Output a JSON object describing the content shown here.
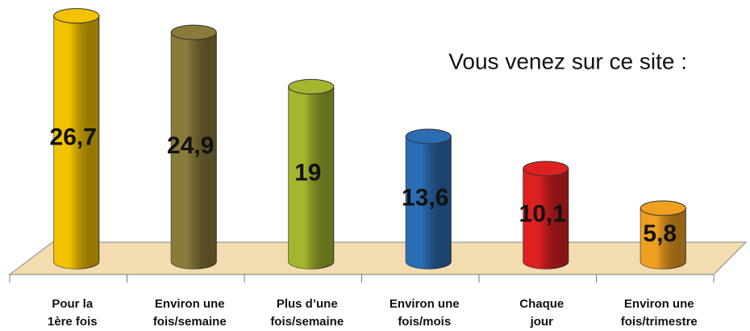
{
  "chart_data": {
    "type": "bar3d",
    "title": "Vous venez sur ce site :",
    "categories": [
      [
        "Pour la",
        "1ère fois"
      ],
      [
        "Environ une",
        "fois/semaine"
      ],
      [
        "Plus d’une",
        "fois/semaine"
      ],
      [
        "Environ une",
        "fois/mois"
      ],
      [
        "Chaque",
        "jour"
      ],
      [
        "Environ une",
        "fois/trimestre"
      ]
    ],
    "values": [
      26.7,
      24.9,
      19,
      13.6,
      10.1,
      5.8
    ],
    "value_labels": [
      "26,7",
      "24,9",
      "19",
      "13,6",
      "10,1",
      "5,8"
    ],
    "colors": [
      "#f2c200",
      "#8a7b3a",
      "#a6b52e",
      "#2b6db3",
      "#dd2020",
      "#f0a020"
    ]
  }
}
